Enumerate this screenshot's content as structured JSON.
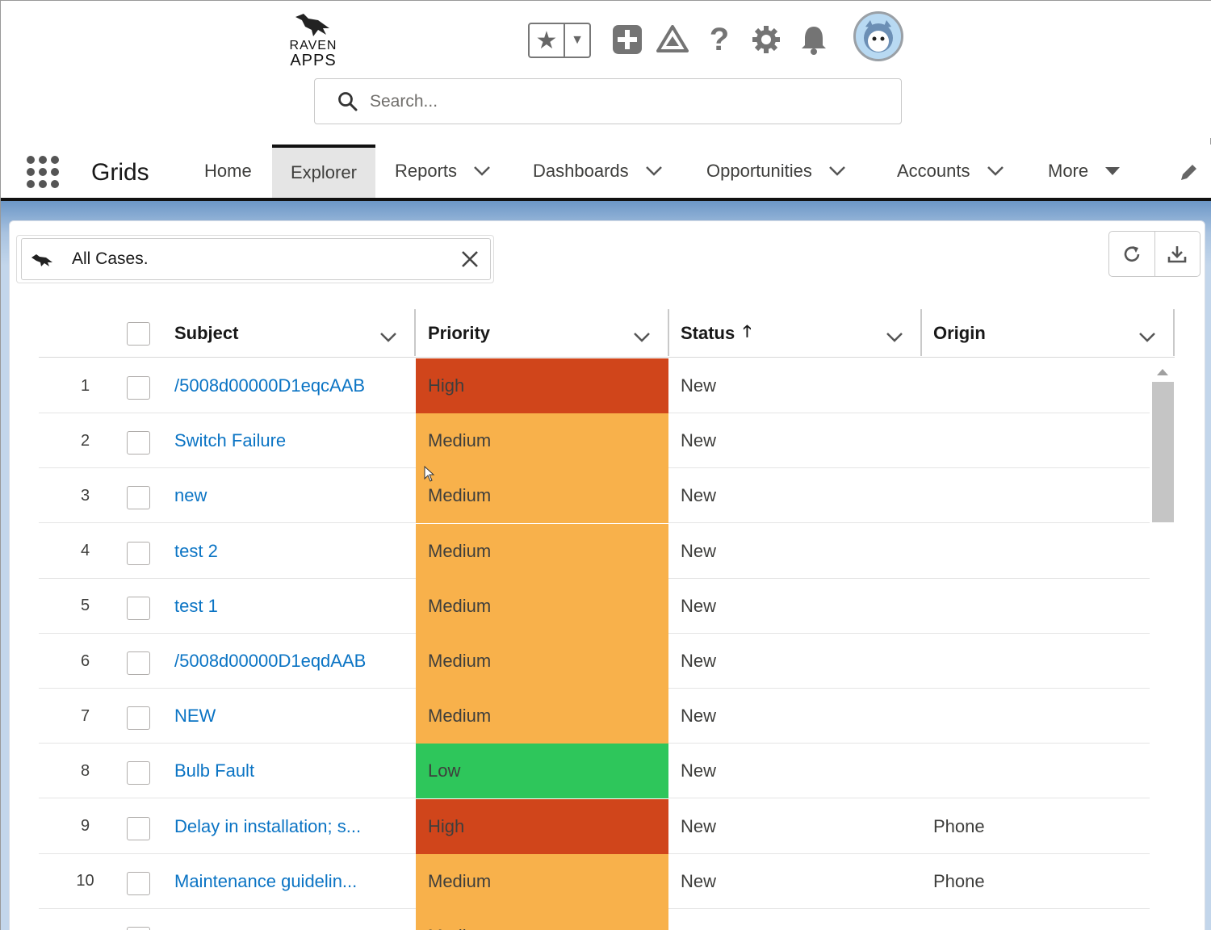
{
  "header": {
    "logo_line1": "RAVEN",
    "logo_line2": "APPS",
    "search_placeholder": "Search..."
  },
  "nav": {
    "app_name": "Grids",
    "tabs": [
      {
        "label": "Home",
        "dropdown": false
      },
      {
        "label": "Explorer",
        "dropdown": false,
        "active": true
      },
      {
        "label": "Reports",
        "dropdown": true
      },
      {
        "label": "Dashboards",
        "dropdown": true
      },
      {
        "label": "Opportunities",
        "dropdown": true
      },
      {
        "label": "Accounts",
        "dropdown": true
      },
      {
        "label": "More",
        "dropdown": true
      }
    ]
  },
  "list_view": {
    "label": "All Cases."
  },
  "grid": {
    "columns": {
      "subject": "Subject",
      "priority": "Priority",
      "status": "Status",
      "origin": "Origin"
    },
    "rows": [
      {
        "num": "1",
        "subject": "/5008d00000D1eqcAAB",
        "priority": "High",
        "status": "New",
        "origin": ""
      },
      {
        "num": "2",
        "subject": "Switch Failure",
        "priority": "Medium",
        "status": "New",
        "origin": ""
      },
      {
        "num": "3",
        "subject": "new",
        "priority": "Medium",
        "status": "New",
        "origin": ""
      },
      {
        "num": "4",
        "subject": "test 2",
        "priority": "Medium",
        "status": "New",
        "origin": ""
      },
      {
        "num": "5",
        "subject": "test 1",
        "priority": "Medium",
        "status": "New",
        "origin": ""
      },
      {
        "num": "6",
        "subject": "/5008d00000D1eqdAAB",
        "priority": "Medium",
        "status": "New",
        "origin": ""
      },
      {
        "num": "7",
        "subject": "NEW",
        "priority": "Medium",
        "status": "New",
        "origin": ""
      },
      {
        "num": "8",
        "subject": "Bulb Fault",
        "priority": "Low",
        "status": "New",
        "origin": ""
      },
      {
        "num": "9",
        "subject": "Delay in installation; s...",
        "priority": "High",
        "status": "New",
        "origin": "Phone"
      },
      {
        "num": "10",
        "subject": "Maintenance guidelin...",
        "priority": "Medium",
        "status": "New",
        "origin": "Phone"
      },
      {
        "num": "",
        "subject": "",
        "priority": "Medium",
        "status": "",
        "origin": ""
      }
    ]
  },
  "colors": {
    "High": "#d0451b",
    "Medium": "#f8b14b",
    "Low": "#2ec65b",
    "link": "#0b74c4"
  }
}
